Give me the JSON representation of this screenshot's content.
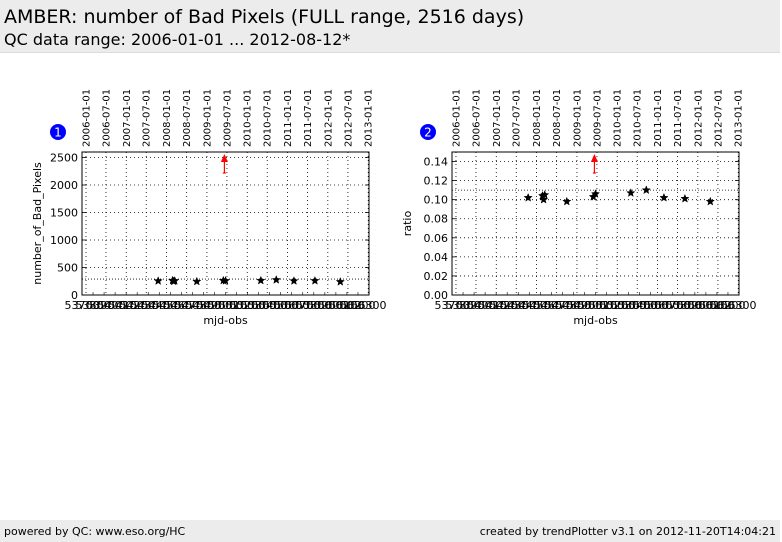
{
  "header": {
    "title": "AMBER: number of Bad Pixels (FULL range, 2516 days)",
    "subtitle": "QC data range: 2006-01-01 ... 2012-08-12*"
  },
  "footer": {
    "left": "powered by QC: www.eso.org/HC",
    "right": "created by trendPlotter v3.1 on 2012-11-20T14:04:21"
  },
  "colors": {
    "markers": "#000000",
    "outlier_arrow": "#ff0000",
    "badge": "#0000ff",
    "reference_line": "#000000"
  },
  "chart_data": [
    {
      "type": "scatter",
      "badge": "1",
      "xlabel": "mjd-obs",
      "ylabel": "number_of_Bad_Pixels",
      "xlim": [
        53700,
        56300
      ],
      "ylim": [
        0,
        2600
      ],
      "yticks": [
        0,
        500,
        1000,
        1500,
        2000,
        2500
      ],
      "xtick_labels_bottom": [
        "53700",
        "53800",
        "53900",
        "54000",
        "54100",
        "54200",
        "54300",
        "54400",
        "54500",
        "54600",
        "54700",
        "54800",
        "54900",
        "55000",
        "55100",
        "55200",
        "55300",
        "55400",
        "55500",
        "55600",
        "55700",
        "55800",
        "55900",
        "56000",
        "56100",
        "56200",
        "56300"
      ],
      "date_axis_top": [
        "2006-01-01",
        "2006-07-01",
        "2007-01-01",
        "2007-07-01",
        "2008-01-01",
        "2008-07-01",
        "2009-01-01",
        "2009-07-01",
        "2010-01-01",
        "2010-07-01",
        "2011-01-01",
        "2011-07-01",
        "2012-01-01",
        "2012-07-01",
        "2013-01-01"
      ],
      "grid": true,
      "reference_line": 290,
      "points": [
        {
          "x": 54390,
          "y": 255
        },
        {
          "x": 54520,
          "y": 262
        },
        {
          "x": 54530,
          "y": 248
        },
        {
          "x": 54540,
          "y": 258
        },
        {
          "x": 54740,
          "y": 245
        },
        {
          "x": 54980,
          "y": 262
        },
        {
          "x": 55000,
          "y": 258
        },
        {
          "x": 55320,
          "y": 262
        },
        {
          "x": 55460,
          "y": 275
        },
        {
          "x": 55620,
          "y": 255
        },
        {
          "x": 55810,
          "y": 258
        },
        {
          "x": 56040,
          "y": 240
        }
      ],
      "outliers_above": [
        {
          "x": 54990
        }
      ]
    },
    {
      "type": "scatter",
      "badge": "2",
      "xlabel": "mjd-obs",
      "ylabel": "ratio",
      "xlim": [
        53700,
        56300
      ],
      "ylim": [
        0,
        0.15
      ],
      "yticks": [
        "0.00",
        "0.02",
        "0.04",
        "0.06",
        "0.08",
        "0.10",
        "0.12",
        "0.14"
      ],
      "xtick_labels_bottom": [
        "53700",
        "53800",
        "53900",
        "54000",
        "54100",
        "54200",
        "54300",
        "54400",
        "54500",
        "54600",
        "54700",
        "54800",
        "54900",
        "55000",
        "55100",
        "55200",
        "55300",
        "55400",
        "55500",
        "55600",
        "55700",
        "55800",
        "55900",
        "56000",
        "56100",
        "56200",
        "56300"
      ],
      "date_axis_top": [
        "2006-01-01",
        "2006-07-01",
        "2007-01-01",
        "2007-07-01",
        "2008-01-01",
        "2008-07-01",
        "2009-01-01",
        "2009-07-01",
        "2010-01-01",
        "2010-07-01",
        "2011-01-01",
        "2011-07-01",
        "2012-01-01",
        "2012-07-01",
        "2013-01-01"
      ],
      "grid": true,
      "reference_line": 0.11,
      "points": [
        {
          "x": 54390,
          "y": 0.102
        },
        {
          "x": 54520,
          "y": 0.104
        },
        {
          "x": 54530,
          "y": 0.1
        },
        {
          "x": 54540,
          "y": 0.105
        },
        {
          "x": 54740,
          "y": 0.098
        },
        {
          "x": 54980,
          "y": 0.103
        },
        {
          "x": 55000,
          "y": 0.106
        },
        {
          "x": 55320,
          "y": 0.107
        },
        {
          "x": 55460,
          "y": 0.11
        },
        {
          "x": 55620,
          "y": 0.102
        },
        {
          "x": 55810,
          "y": 0.101
        },
        {
          "x": 56040,
          "y": 0.098
        }
      ],
      "outliers_above": [
        {
          "x": 54990
        }
      ]
    }
  ]
}
